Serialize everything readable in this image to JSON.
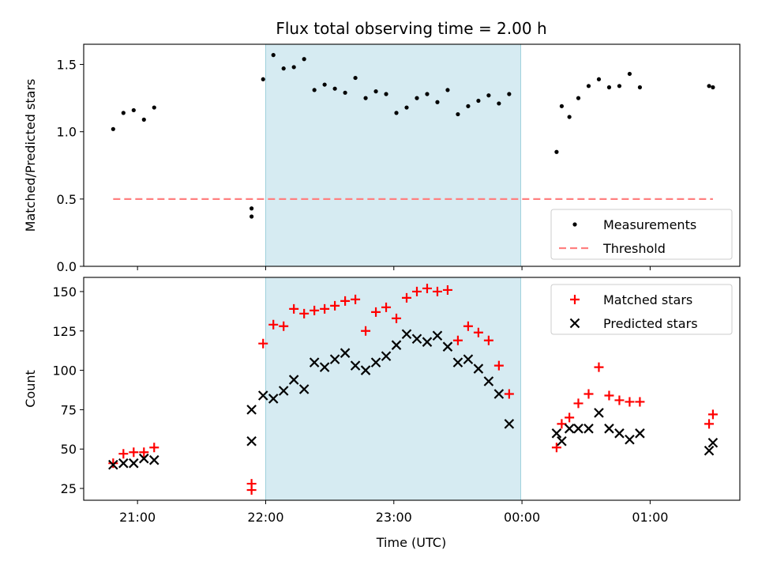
{
  "chart_data": {
    "title": "Flux total observing time = 2.00 h",
    "xlabel": "Time (UTC)",
    "x_unit": "hours since 00:00 UTC (negative = previous day)",
    "x_ticks": [
      {
        "x": -3,
        "label": "21:00"
      },
      {
        "x": -2,
        "label": "22:00"
      },
      {
        "x": -1,
        "label": "23:00"
      },
      {
        "x": 0,
        "label": "00:00"
      },
      {
        "x": 1,
        "label": "01:00"
      }
    ],
    "xlim": [
      -3.42,
      1.7
    ],
    "shaded_interval": [
      -2.0,
      -0.01
    ],
    "shade_color": "#add8e6",
    "panels": [
      {
        "type": "scatter",
        "ylabel": "Matched/Predicted stars",
        "ylim": [
          0,
          1.65
        ],
        "yticks": [
          {
            "v": 0,
            "label": "0.0"
          },
          {
            "v": 0.5,
            "label": "0.5"
          },
          {
            "v": 1.0,
            "label": "1.0"
          },
          {
            "v": 1.5,
            "label": "1.5"
          }
        ],
        "legend_position": "bottom-right",
        "series": [
          {
            "name": "Measurements",
            "kind": "dot",
            "color": "#000000",
            "points": [
              [
                -3.19,
                1.02
              ],
              [
                -3.11,
                1.14
              ],
              [
                -3.03,
                1.16
              ],
              [
                -2.95,
                1.09
              ],
              [
                -2.87,
                1.18
              ],
              [
                -2.11,
                0.43
              ],
              [
                -2.11,
                0.37
              ],
              [
                -2.02,
                1.39
              ],
              [
                -1.94,
                1.57
              ],
              [
                -1.86,
                1.47
              ],
              [
                -1.78,
                1.48
              ],
              [
                -1.7,
                1.54
              ],
              [
                -1.62,
                1.31
              ],
              [
                -1.54,
                1.35
              ],
              [
                -1.46,
                1.32
              ],
              [
                -1.38,
                1.29
              ],
              [
                -1.3,
                1.4
              ],
              [
                -1.22,
                1.25
              ],
              [
                -1.14,
                1.3
              ],
              [
                -1.06,
                1.28
              ],
              [
                -0.98,
                1.14
              ],
              [
                -0.9,
                1.18
              ],
              [
                -0.82,
                1.25
              ],
              [
                -0.74,
                1.28
              ],
              [
                -0.66,
                1.22
              ],
              [
                -0.58,
                1.31
              ],
              [
                -0.5,
                1.13
              ],
              [
                -0.42,
                1.19
              ],
              [
                -0.34,
                1.23
              ],
              [
                -0.26,
                1.27
              ],
              [
                -0.18,
                1.21
              ],
              [
                -0.1,
                1.28
              ],
              [
                0.27,
                0.85
              ],
              [
                0.31,
                1.19
              ],
              [
                0.37,
                1.11
              ],
              [
                0.44,
                1.25
              ],
              [
                0.52,
                1.34
              ],
              [
                0.6,
                1.39
              ],
              [
                0.68,
                1.33
              ],
              [
                0.76,
                1.34
              ],
              [
                0.84,
                1.43
              ],
              [
                0.92,
                1.33
              ],
              [
                1.46,
                1.34
              ],
              [
                1.49,
                1.33
              ]
            ]
          },
          {
            "name": "Threshold",
            "kind": "dashed-line",
            "color": "#ff8080",
            "points": [
              [
                -3.19,
                0.5
              ],
              [
                1.49,
                0.5
              ]
            ]
          }
        ]
      },
      {
        "type": "scatter",
        "ylabel": "Count",
        "ylim": [
          17.5,
          159
        ],
        "yticks": [
          {
            "v": 25,
            "label": "25"
          },
          {
            "v": 50,
            "label": "50"
          },
          {
            "v": 75,
            "label": "75"
          },
          {
            "v": 100,
            "label": "100"
          },
          {
            "v": 125,
            "label": "125"
          },
          {
            "v": 150,
            "label": "150"
          }
        ],
        "legend_position": "top-right",
        "series": [
          {
            "name": "Matched stars",
            "kind": "plus",
            "color": "#ff0000",
            "points": [
              [
                -3.19,
                41
              ],
              [
                -3.11,
                47
              ],
              [
                -3.03,
                48
              ],
              [
                -2.95,
                48
              ],
              [
                -2.87,
                51
              ],
              [
                -2.11,
                28
              ],
              [
                -2.11,
                24
              ],
              [
                -2.02,
                117
              ],
              [
                -1.94,
                129
              ],
              [
                -1.86,
                128
              ],
              [
                -1.78,
                139
              ],
              [
                -1.7,
                136
              ],
              [
                -1.62,
                138
              ],
              [
                -1.54,
                139
              ],
              [
                -1.46,
                141
              ],
              [
                -1.38,
                144
              ],
              [
                -1.3,
                145
              ],
              [
                -1.22,
                125
              ],
              [
                -1.14,
                137
              ],
              [
                -1.06,
                140
              ],
              [
                -0.98,
                133
              ],
              [
                -0.9,
                146
              ],
              [
                -0.82,
                150
              ],
              [
                -0.74,
                152
              ],
              [
                -0.66,
                150
              ],
              [
                -0.58,
                151
              ],
              [
                -0.5,
                119
              ],
              [
                -0.42,
                128
              ],
              [
                -0.34,
                124
              ],
              [
                -0.26,
                119
              ],
              [
                -0.18,
                103
              ],
              [
                -0.1,
                85
              ],
              [
                0.27,
                51
              ],
              [
                0.31,
                66
              ],
              [
                0.37,
                70
              ],
              [
                0.44,
                79
              ],
              [
                0.52,
                85
              ],
              [
                0.6,
                102
              ],
              [
                0.68,
                84
              ],
              [
                0.76,
                81
              ],
              [
                0.84,
                80
              ],
              [
                0.92,
                80
              ],
              [
                1.46,
                66
              ],
              [
                1.49,
                72
              ]
            ]
          },
          {
            "name": "Predicted stars",
            "kind": "cross",
            "color": "#000000",
            "points": [
              [
                -3.19,
                40
              ],
              [
                -3.11,
                41
              ],
              [
                -3.03,
                41
              ],
              [
                -2.95,
                44
              ],
              [
                -2.87,
                43
              ],
              [
                -2.11,
                75
              ],
              [
                -2.11,
                55
              ],
              [
                -2.02,
                84
              ],
              [
                -1.94,
                82
              ],
              [
                -1.86,
                87
              ],
              [
                -1.78,
                94
              ],
              [
                -1.7,
                88
              ],
              [
                -1.62,
                105
              ],
              [
                -1.54,
                102
              ],
              [
                -1.46,
                107
              ],
              [
                -1.38,
                111
              ],
              [
                -1.3,
                103
              ],
              [
                -1.22,
                100
              ],
              [
                -1.14,
                105
              ],
              [
                -1.06,
                109
              ],
              [
                -0.98,
                116
              ],
              [
                -0.9,
                123
              ],
              [
                -0.82,
                120
              ],
              [
                -0.74,
                118
              ],
              [
                -0.66,
                122
              ],
              [
                -0.58,
                115
              ],
              [
                -0.5,
                105
              ],
              [
                -0.42,
                107
              ],
              [
                -0.34,
                101
              ],
              [
                -0.26,
                93
              ],
              [
                -0.18,
                85
              ],
              [
                -0.1,
                66
              ],
              [
                0.27,
                60
              ],
              [
                0.31,
                55
              ],
              [
                0.37,
                63
              ],
              [
                0.44,
                63
              ],
              [
                0.52,
                63
              ],
              [
                0.6,
                73
              ],
              [
                0.68,
                63
              ],
              [
                0.76,
                60
              ],
              [
                0.84,
                56
              ],
              [
                0.92,
                60
              ],
              [
                1.46,
                49
              ],
              [
                1.49,
                54
              ]
            ]
          }
        ]
      }
    ]
  }
}
